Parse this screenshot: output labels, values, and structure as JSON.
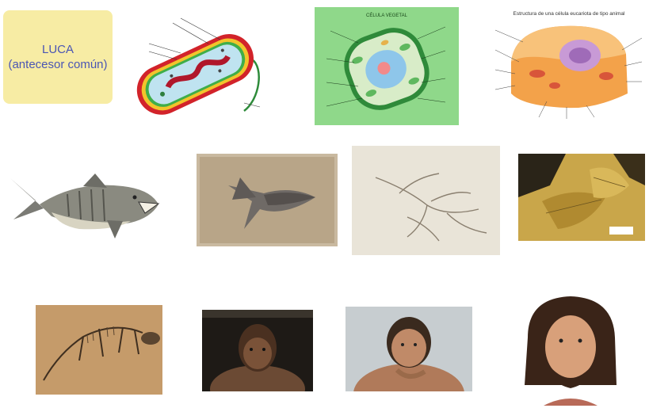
{
  "luca": {
    "title": "LUCA",
    "subtitle": "(antecesor común)"
  },
  "plant_cell": {
    "title": "CÉLULA VEGETAL"
  },
  "animal_cell": {
    "title": "Estructura de una célula eucariota de tipo animal"
  },
  "colors": {
    "luca_bg": "#f7eca4",
    "luca_text": "#4a55b4",
    "plant_bg": "#8fd88a",
    "animal_cell": "#f3a24a"
  }
}
